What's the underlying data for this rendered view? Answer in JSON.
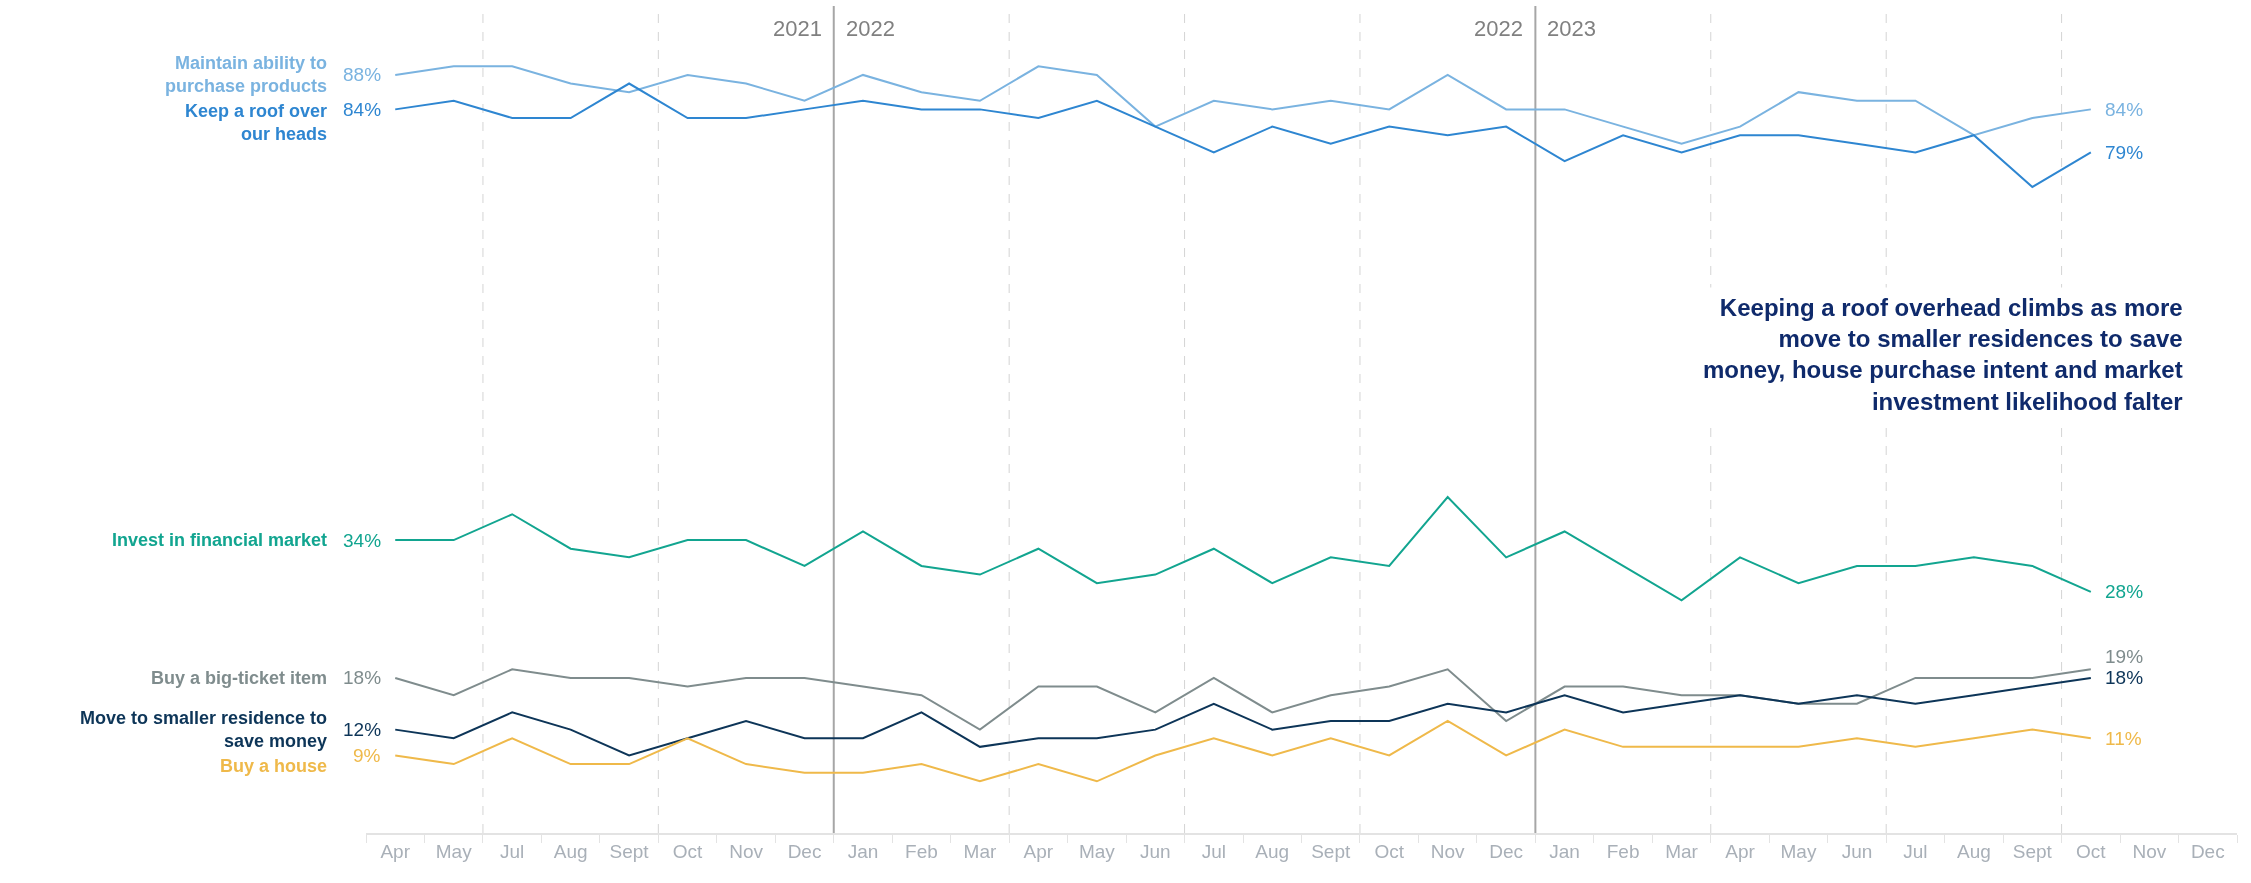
{
  "chart_data": {
    "type": "line",
    "categories": [
      "Apr",
      "May",
      "Jul",
      "Aug",
      "Sept",
      "Oct",
      "Nov",
      "Dec",
      "Jan",
      "Feb",
      "Mar",
      "Apr",
      "May",
      "Jun",
      "Jul",
      "Aug",
      "Sept",
      "Oct",
      "Nov",
      "Dec",
      "Jan",
      "Feb",
      "Mar",
      "Apr",
      "May",
      "Jun",
      "Jul",
      "Aug",
      "Sept",
      "Oct",
      "Nov",
      "Dec"
    ],
    "series": [
      {
        "name": "Maintain ability to\npurchase products",
        "color": "#7ab3e0",
        "values": [
          88,
          89,
          89,
          87,
          86,
          88,
          87,
          85,
          88,
          86,
          85,
          89,
          88,
          82,
          85,
          84,
          85,
          84,
          88,
          84,
          84,
          82,
          80,
          82,
          86,
          85,
          85,
          81,
          83,
          84,
          null,
          null
        ],
        "value_labels": [
          "88%",
          null,
          null,
          null,
          null,
          null,
          null,
          null,
          null,
          null,
          null,
          null,
          null,
          null,
          null,
          null,
          null,
          null,
          null,
          null,
          null,
          null,
          null,
          null,
          null,
          null,
          null,
          null,
          null,
          "84%",
          null,
          null
        ]
      },
      {
        "name": "Keep a roof over\nour heads",
        "color": "#2e86d1",
        "values": [
          84,
          85,
          83,
          83,
          87,
          83,
          83,
          84,
          85,
          84,
          84,
          83,
          85,
          82,
          79,
          82,
          80,
          82,
          81,
          82,
          78,
          81,
          79,
          81,
          81,
          80,
          79,
          81,
          75,
          79,
          null,
          null
        ],
        "value_labels": [
          "84%",
          null,
          null,
          null,
          null,
          null,
          null,
          null,
          null,
          null,
          null,
          null,
          null,
          null,
          null,
          null,
          null,
          null,
          null,
          null,
          null,
          null,
          null,
          null,
          null,
          null,
          null,
          null,
          null,
          "79%",
          null,
          null
        ]
      },
      {
        "name": "Invest in financial market",
        "color": "#12a590",
        "values": [
          34,
          34,
          37,
          33,
          32,
          34,
          34,
          31,
          35,
          31,
          30,
          33,
          29,
          30,
          33,
          29,
          32,
          31,
          39,
          32,
          35,
          31,
          27,
          32,
          29,
          31,
          31,
          32,
          31,
          28,
          null,
          null
        ],
        "value_labels": [
          "34%",
          null,
          null,
          null,
          null,
          null,
          null,
          null,
          null,
          null,
          null,
          null,
          null,
          null,
          null,
          null,
          null,
          null,
          null,
          null,
          null,
          null,
          null,
          null,
          null,
          null,
          null,
          null,
          null,
          "28%",
          null,
          null
        ]
      },
      {
        "name": "Buy a big-ticket item",
        "color": "#7f8c8d",
        "values": [
          18,
          16,
          19,
          18,
          18,
          17,
          18,
          18,
          17,
          16,
          12,
          17,
          17,
          14,
          18,
          14,
          16,
          17,
          19,
          13,
          17,
          17,
          16,
          16,
          15,
          15,
          18,
          18,
          18,
          19,
          null,
          null
        ],
        "value_labels": [
          "18%",
          null,
          null,
          null,
          null,
          null,
          null,
          null,
          null,
          null,
          null,
          null,
          null,
          null,
          null,
          null,
          null,
          null,
          null,
          null,
          null,
          null,
          null,
          null,
          null,
          null,
          null,
          null,
          null,
          "19%",
          null,
          null
        ]
      },
      {
        "name": "Move to smaller residence to\nsave money",
        "color": "#0d3558",
        "values": [
          12,
          11,
          14,
          12,
          9,
          11,
          13,
          11,
          11,
          14,
          10,
          11,
          11,
          12,
          15,
          12,
          13,
          13,
          15,
          14,
          16,
          14,
          15,
          16,
          15,
          16,
          15,
          16,
          17,
          18,
          null,
          null
        ],
        "value_labels": [
          "12%",
          null,
          null,
          null,
          null,
          null,
          null,
          null,
          null,
          null,
          null,
          null,
          null,
          null,
          null,
          null,
          null,
          null,
          null,
          null,
          null,
          null,
          null,
          null,
          null,
          null,
          null,
          null,
          null,
          "18%",
          null,
          null
        ]
      },
      {
        "name": "Buy a house",
        "color": "#efb94a",
        "values": [
          9,
          8,
          11,
          8,
          8,
          11,
          8,
          7,
          7,
          8,
          6,
          8,
          6,
          9,
          11,
          9,
          11,
          9,
          13,
          9,
          12,
          10,
          10,
          10,
          10,
          11,
          10,
          11,
          12,
          11,
          null,
          null
        ],
        "value_labels": [
          "9%",
          null,
          null,
          null,
          null,
          null,
          null,
          null,
          null,
          null,
          null,
          null,
          null,
          null,
          null,
          null,
          null,
          null,
          null,
          null,
          null,
          null,
          null,
          null,
          null,
          null,
          null,
          null,
          null,
          "11%",
          null,
          null
        ]
      }
    ],
    "ylim": [
      0,
      96
    ],
    "tick_labels": "x",
    "grid": false,
    "legend": false,
    "line_style": "solid",
    "marker": "none",
    "annotations": [
      "2021",
      "2022",
      "2022",
      "2023",
      "Keeping a roof overhead climbs as more\nmove to smaller residences to save\nmoney, house purchase intent and market\ninvestment likelihood falter"
    ]
  }
}
